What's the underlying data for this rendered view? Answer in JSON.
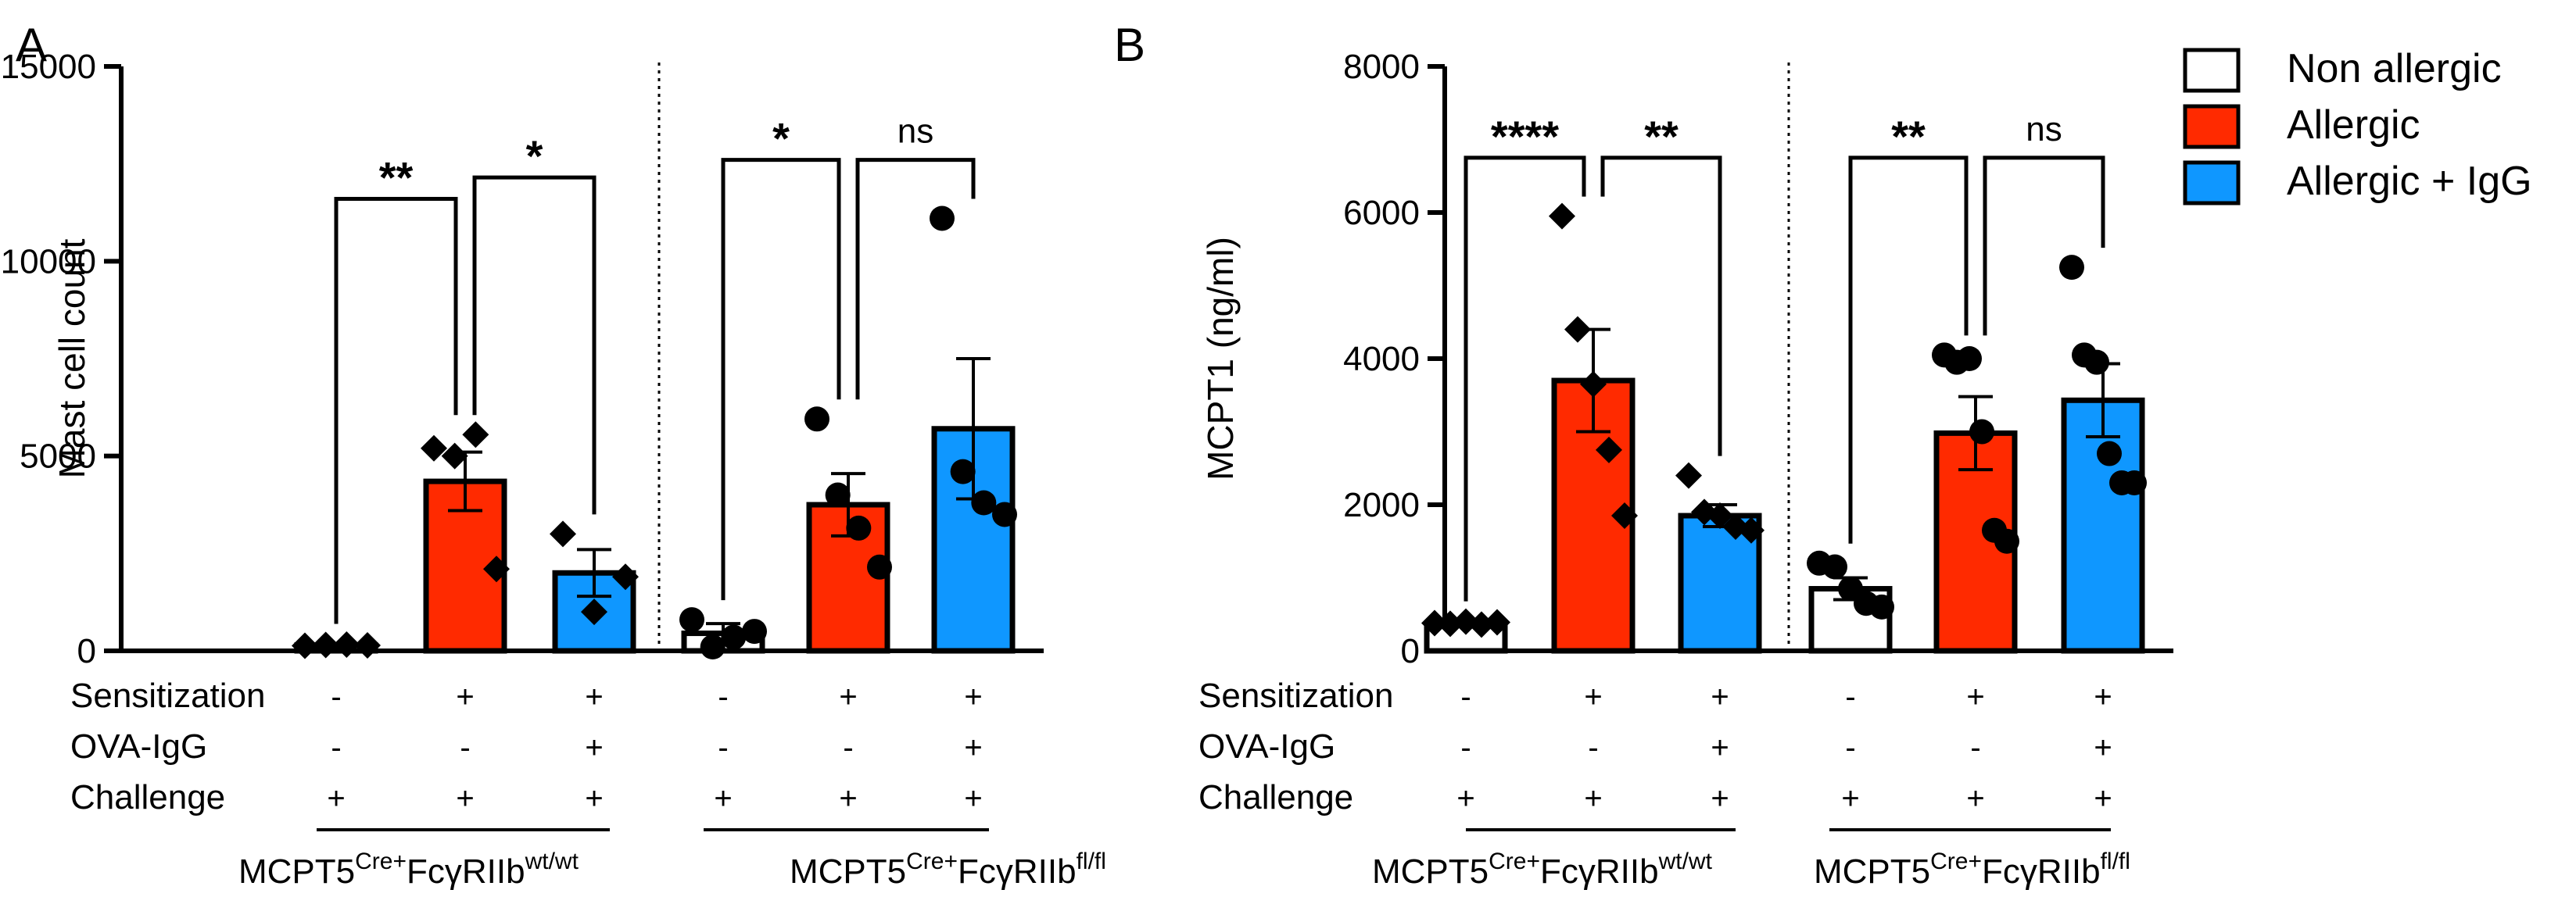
{
  "colors": {
    "non_allergic": "#ffffff",
    "allergic": "#ff2a00",
    "allergic_igg": "#0f97ff",
    "axis": "#000000"
  },
  "legend": {
    "items": [
      {
        "label": "Non allergic",
        "color": "#ffffff"
      },
      {
        "label": "Allergic",
        "color": "#ff2a00"
      },
      {
        "label": "Allergic + IgG",
        "color": "#0f97ff"
      }
    ]
  },
  "condition_table": {
    "rows": [
      {
        "label": "Sensitization",
        "values": [
          "-",
          "+",
          "+",
          "-",
          "+",
          "+"
        ]
      },
      {
        "label": "OVA-IgG",
        "values": [
          "-",
          "-",
          "+",
          "-",
          "-",
          "+"
        ]
      },
      {
        "label": "Challenge",
        "values": [
          "+",
          "+",
          "+",
          "+",
          "+",
          "+"
        ]
      }
    ]
  },
  "groups": [
    {
      "base": "MCPT5",
      "sup1": "Cre+",
      "mid": "Fc",
      "greek": "γ",
      "mid2": "RIIb",
      "sup2": "wt/wt"
    },
    {
      "base": "MCPT5",
      "sup1": "Cre+",
      "mid": "Fc",
      "greek": "γ",
      "mid2": "RIIb",
      "sup2": "fl/fl"
    }
  ],
  "chart_data": [
    {
      "panel": "A",
      "type": "bar",
      "ylabel": "Mast cell count",
      "ylim": [
        0,
        15000
      ],
      "yticks": [
        0,
        5000,
        10000,
        15000
      ],
      "tick_labels": [
        "0",
        "5000",
        "10000",
        "15000"
      ],
      "bars": [
        {
          "group": 0,
          "condition": "Non allergic",
          "mean": 150,
          "sem": 40,
          "marker": "diamond",
          "points": [
            130,
            150,
            160,
            140
          ]
        },
        {
          "group": 0,
          "condition": "Allergic",
          "mean": 4350,
          "sem": 750,
          "marker": "diamond",
          "points": [
            5200,
            5000,
            5550,
            2100
          ]
        },
        {
          "group": 0,
          "condition": "Allergic + IgG",
          "mean": 2000,
          "sem": 600,
          "marker": "diamond",
          "points": [
            3000,
            1000,
            1900
          ]
        },
        {
          "group": 1,
          "condition": "Non allergic",
          "mean": 450,
          "sem": 250,
          "marker": "circle",
          "points": [
            800,
            100,
            350,
            500
          ]
        },
        {
          "group": 1,
          "condition": "Allergic",
          "mean": 3750,
          "sem": 800,
          "marker": "circle",
          "points": [
            5950,
            4000,
            3150,
            2150
          ]
        },
        {
          "group": 1,
          "condition": "Allergic + IgG",
          "mean": 5700,
          "sem": 1800,
          "marker": "circle",
          "points": [
            11100,
            4600,
            3800,
            3500
          ]
        }
      ],
      "comparisons": [
        {
          "from": 0,
          "to": 1,
          "label": "**",
          "y": 11600
        },
        {
          "from": 1,
          "to": 2,
          "label": "*",
          "y": 12150
        },
        {
          "from": 3,
          "to": 4,
          "label": "*",
          "y": 12600
        },
        {
          "from": 4,
          "to": 5,
          "label": "ns",
          "y": 12600
        }
      ]
    },
    {
      "panel": "B",
      "type": "bar",
      "ylabel": "MCPT1 (ng/ml)",
      "ylim": [
        0,
        8000
      ],
      "yticks": [
        0,
        2000,
        4000,
        6000,
        8000
      ],
      "tick_labels": [
        "0",
        "2000",
        "4000",
        "6000",
        "8000"
      ],
      "bars": [
        {
          "group": 0,
          "condition": "Non allergic",
          "mean": 380,
          "sem": 30,
          "marker": "diamond",
          "points": [
            380,
            370,
            400,
            360,
            390
          ]
        },
        {
          "group": 0,
          "condition": "Allergic",
          "mean": 3700,
          "sem": 700,
          "marker": "diamond",
          "points": [
            5950,
            4400,
            3650,
            2750,
            1850
          ]
        },
        {
          "group": 0,
          "condition": "Allergic + IgG",
          "mean": 1850,
          "sem": 150,
          "marker": "diamond",
          "points": [
            2400,
            1900,
            1850,
            1700,
            1650
          ]
        },
        {
          "group": 1,
          "condition": "Non allergic",
          "mean": 850,
          "sem": 150,
          "marker": "circle",
          "points": [
            1200,
            1150,
            850,
            650,
            600
          ]
        },
        {
          "group": 1,
          "condition": "Allergic",
          "mean": 2980,
          "sem": 500,
          "marker": "circle",
          "points": [
            4050,
            3950,
            4000,
            3000,
            1650,
            1500
          ]
        },
        {
          "group": 1,
          "condition": "Allergic + IgG",
          "mean": 3430,
          "sem": 500,
          "marker": "circle",
          "points": [
            5250,
            4050,
            3950,
            2700,
            2300,
            2300
          ]
        }
      ],
      "comparisons": [
        {
          "from": 0,
          "to": 1,
          "label": "****",
          "y": 6750
        },
        {
          "from": 1,
          "to": 2,
          "label": "**",
          "y": 6750
        },
        {
          "from": 3,
          "to": 4,
          "label": "**",
          "y": 6750
        },
        {
          "from": 4,
          "to": 5,
          "label": "ns",
          "y": 6750
        }
      ]
    }
  ]
}
